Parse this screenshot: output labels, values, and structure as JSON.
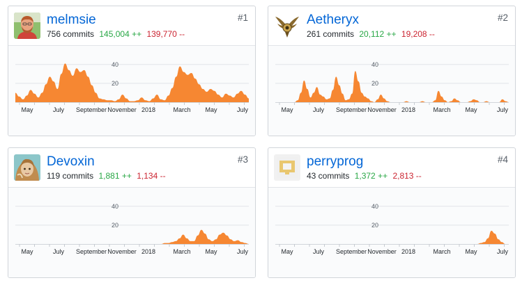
{
  "colors": {
    "area": "#f68732",
    "link": "#0366d6",
    "additions": "#28a745",
    "deletions": "#cb2431"
  },
  "contributors": [
    {
      "rank": "#1",
      "username": "melmsie",
      "commits": "756 commits",
      "additions": "145,004 ++",
      "deletions": "139,770 --",
      "avatar_icon": "person-avatar-icon",
      "chart_data": {
        "type": "area",
        "y_ticks": [
          "40",
          "20"
        ],
        "x_ticks": [
          "May",
          "July",
          "September",
          "November",
          "2018",
          "March",
          "May",
          "July"
        ],
        "values": [
          10,
          6,
          3,
          7,
          13,
          9,
          5,
          10,
          19,
          27,
          22,
          14,
          30,
          41,
          34,
          28,
          36,
          32,
          34,
          27,
          18,
          10,
          4,
          3,
          2,
          2,
          1,
          3,
          8,
          4,
          1,
          1,
          2,
          5,
          2,
          1,
          4,
          8,
          3,
          2,
          7,
          15,
          27,
          38,
          32,
          29,
          31,
          25,
          19,
          14,
          11,
          14,
          12,
          8,
          5,
          9,
          7,
          5,
          9,
          12,
          8,
          4
        ],
        "ylim": [
          0,
          45
        ]
      }
    },
    {
      "rank": "#2",
      "username": "Aetheryx",
      "commits": "261 commits",
      "additions": "20,112 ++",
      "deletions": "19,208 --",
      "avatar_icon": "winged-emblem-icon",
      "chart_data": {
        "type": "area",
        "y_ticks": [
          "40",
          "20"
        ],
        "x_ticks": [
          "May",
          "July",
          "September",
          "November",
          "2018",
          "March",
          "May",
          "July"
        ],
        "values": [
          0,
          0,
          0,
          0,
          0,
          0,
          0,
          2,
          10,
          23,
          14,
          5,
          10,
          16,
          8,
          6,
          3,
          4,
          13,
          27,
          18,
          9,
          2,
          3,
          9,
          33,
          22,
          10,
          6,
          4,
          1,
          0,
          3,
          8,
          4,
          1,
          0,
          0,
          0,
          0,
          0,
          1,
          0,
          0,
          0,
          0,
          1,
          0,
          0,
          0,
          2,
          12,
          6,
          2,
          0,
          1,
          4,
          2,
          0,
          0,
          0,
          1,
          3,
          2,
          0,
          0,
          1,
          0,
          0,
          0,
          0,
          3,
          1,
          0
        ],
        "ylim": [
          0,
          45
        ]
      }
    },
    {
      "rank": "#3",
      "username": "Devoxin",
      "commits": "119 commits",
      "additions": "1,881 ++",
      "deletions": "1,134 --",
      "avatar_icon": "anime-avatar-icon",
      "chart_data": {
        "type": "area",
        "y_ticks": [
          "40",
          "20"
        ],
        "x_ticks": [
          "May",
          "July",
          "September",
          "November",
          "2018",
          "March",
          "May",
          "July"
        ],
        "values": [
          0,
          0,
          0,
          0,
          0,
          0,
          0,
          0,
          0,
          0,
          0,
          0,
          0,
          0,
          0,
          0,
          0,
          0,
          0,
          0,
          0,
          0,
          0,
          0,
          0,
          0,
          0,
          0,
          0,
          0,
          0,
          0,
          0,
          0,
          0,
          0,
          0,
          0,
          0,
          0,
          0,
          1,
          1,
          2,
          3,
          6,
          10,
          6,
          3,
          3,
          9,
          15,
          11,
          5,
          3,
          5,
          10,
          12,
          9,
          5,
          3,
          4,
          2,
          1,
          0
        ],
        "ylim": [
          0,
          45
        ]
      }
    },
    {
      "rank": "#4",
      "username": "perryprog",
      "commits": "43 commits",
      "additions": "1,372 ++",
      "deletions": "2,813 --",
      "avatar_icon": "yellow-frame-avatar-icon",
      "chart_data": {
        "type": "area",
        "y_ticks": [
          "40",
          "20"
        ],
        "x_ticks": [
          "May",
          "July",
          "September",
          "November",
          "2018",
          "March",
          "May",
          "July"
        ],
        "values": [
          0,
          0,
          0,
          0,
          0,
          0,
          0,
          0,
          0,
          0,
          0,
          0,
          0,
          0,
          0,
          0,
          0,
          0,
          0,
          0,
          0,
          0,
          0,
          0,
          0,
          0,
          0,
          0,
          0,
          0,
          0,
          0,
          0,
          0,
          0,
          0,
          0,
          0,
          0,
          0,
          0,
          0,
          0,
          0,
          0,
          0,
          0,
          0,
          0,
          0,
          0,
          0,
          0,
          0,
          0,
          0,
          0,
          0,
          0,
          1,
          2,
          6,
          14,
          11,
          5,
          2,
          0,
          0
        ],
        "ylim": [
          0,
          45
        ]
      }
    }
  ]
}
